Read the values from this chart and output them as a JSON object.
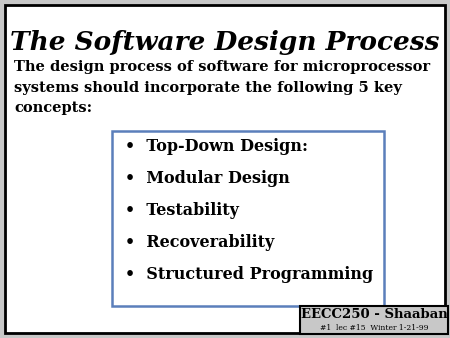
{
  "title": "The Software Design Process",
  "intro_text": "The design process of software for microprocessor\nsystems should incorporate the following 5 key\nconcepts:",
  "bullet_items": [
    "Top-Down Design:",
    "Modular Design",
    "Testability",
    "Recoverability",
    "Structured Programming"
  ],
  "footer_label": "EECC250 - Shaaban",
  "footer_sublabel": "#1  lec #15  Winter 1-21-99",
  "bg_color": "#c8c8c8",
  "slide_bg": "#ffffff",
  "border_color": "#000000",
  "box_border_color": "#5b7fbb",
  "title_fontsize": 19,
  "intro_fontsize": 10.5,
  "bullet_fontsize": 11.5,
  "footer_fontsize": 9.5,
  "footer_sub_fontsize": 5.5
}
